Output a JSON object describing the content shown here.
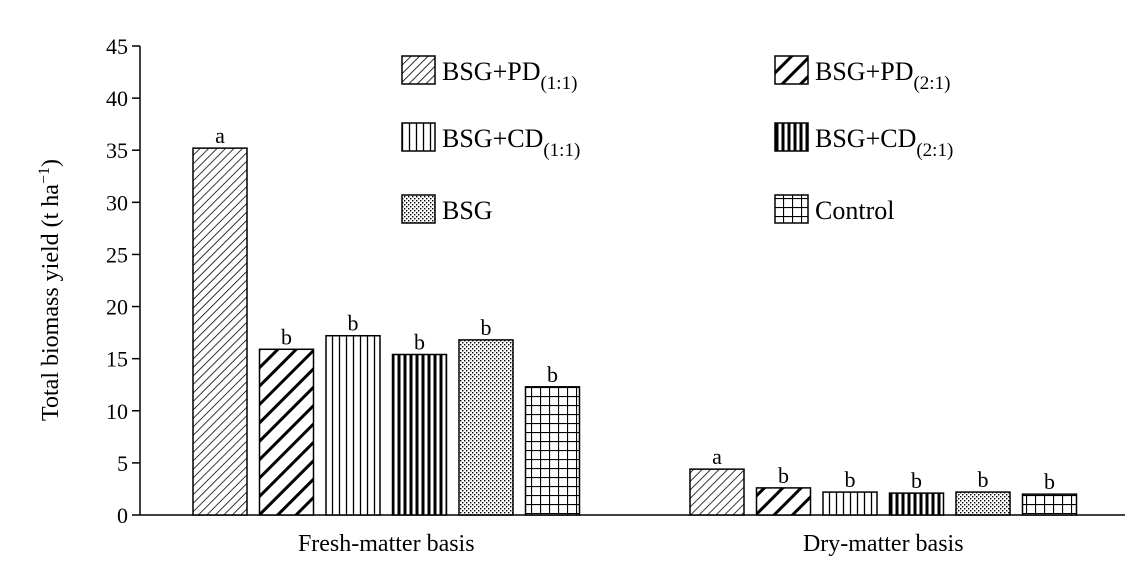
{
  "chart_data": {
    "type": "bar",
    "title": "",
    "xlabel": "",
    "ylabel": "Total biomass yield (t ha",
    "ylabel_sup": "−1",
    "ylabel_close": ")",
    "ylim": [
      0,
      45
    ],
    "yticks": [
      0,
      5,
      10,
      15,
      20,
      25,
      30,
      35,
      40,
      45
    ],
    "grid": false,
    "legend_position": "top-right",
    "categories": [
      "Fresh-matter basis",
      "Dry-matter basis"
    ],
    "series": [
      {
        "name": "BSG+PD",
        "name_sub": "(1:1)",
        "pattern": "diag-fine",
        "values": [
          35.2,
          4.4
        ],
        "letters": [
          "a",
          "a"
        ]
      },
      {
        "name": "BSG+PD",
        "name_sub": "(2:1)",
        "pattern": "diag-bold",
        "values": [
          15.9,
          2.6
        ],
        "letters": [
          "b",
          "b"
        ]
      },
      {
        "name": "BSG+CD",
        "name_sub": "(1:1)",
        "pattern": "vert-fine",
        "values": [
          17.2,
          2.2
        ],
        "letters": [
          "b",
          "b"
        ]
      },
      {
        "name": "BSG+CD",
        "name_sub": "(2:1)",
        "pattern": "vert-bold",
        "values": [
          15.4,
          2.1
        ],
        "letters": [
          "b",
          "b"
        ]
      },
      {
        "name": "BSG",
        "name_sub": "",
        "pattern": "dots",
        "values": [
          16.8,
          2.2
        ],
        "letters": [
          "b",
          "b"
        ]
      },
      {
        "name": "Control",
        "name_sub": "",
        "pattern": "grid",
        "values": [
          12.3,
          2.0
        ],
        "letters": [
          "b",
          "b"
        ]
      }
    ]
  }
}
